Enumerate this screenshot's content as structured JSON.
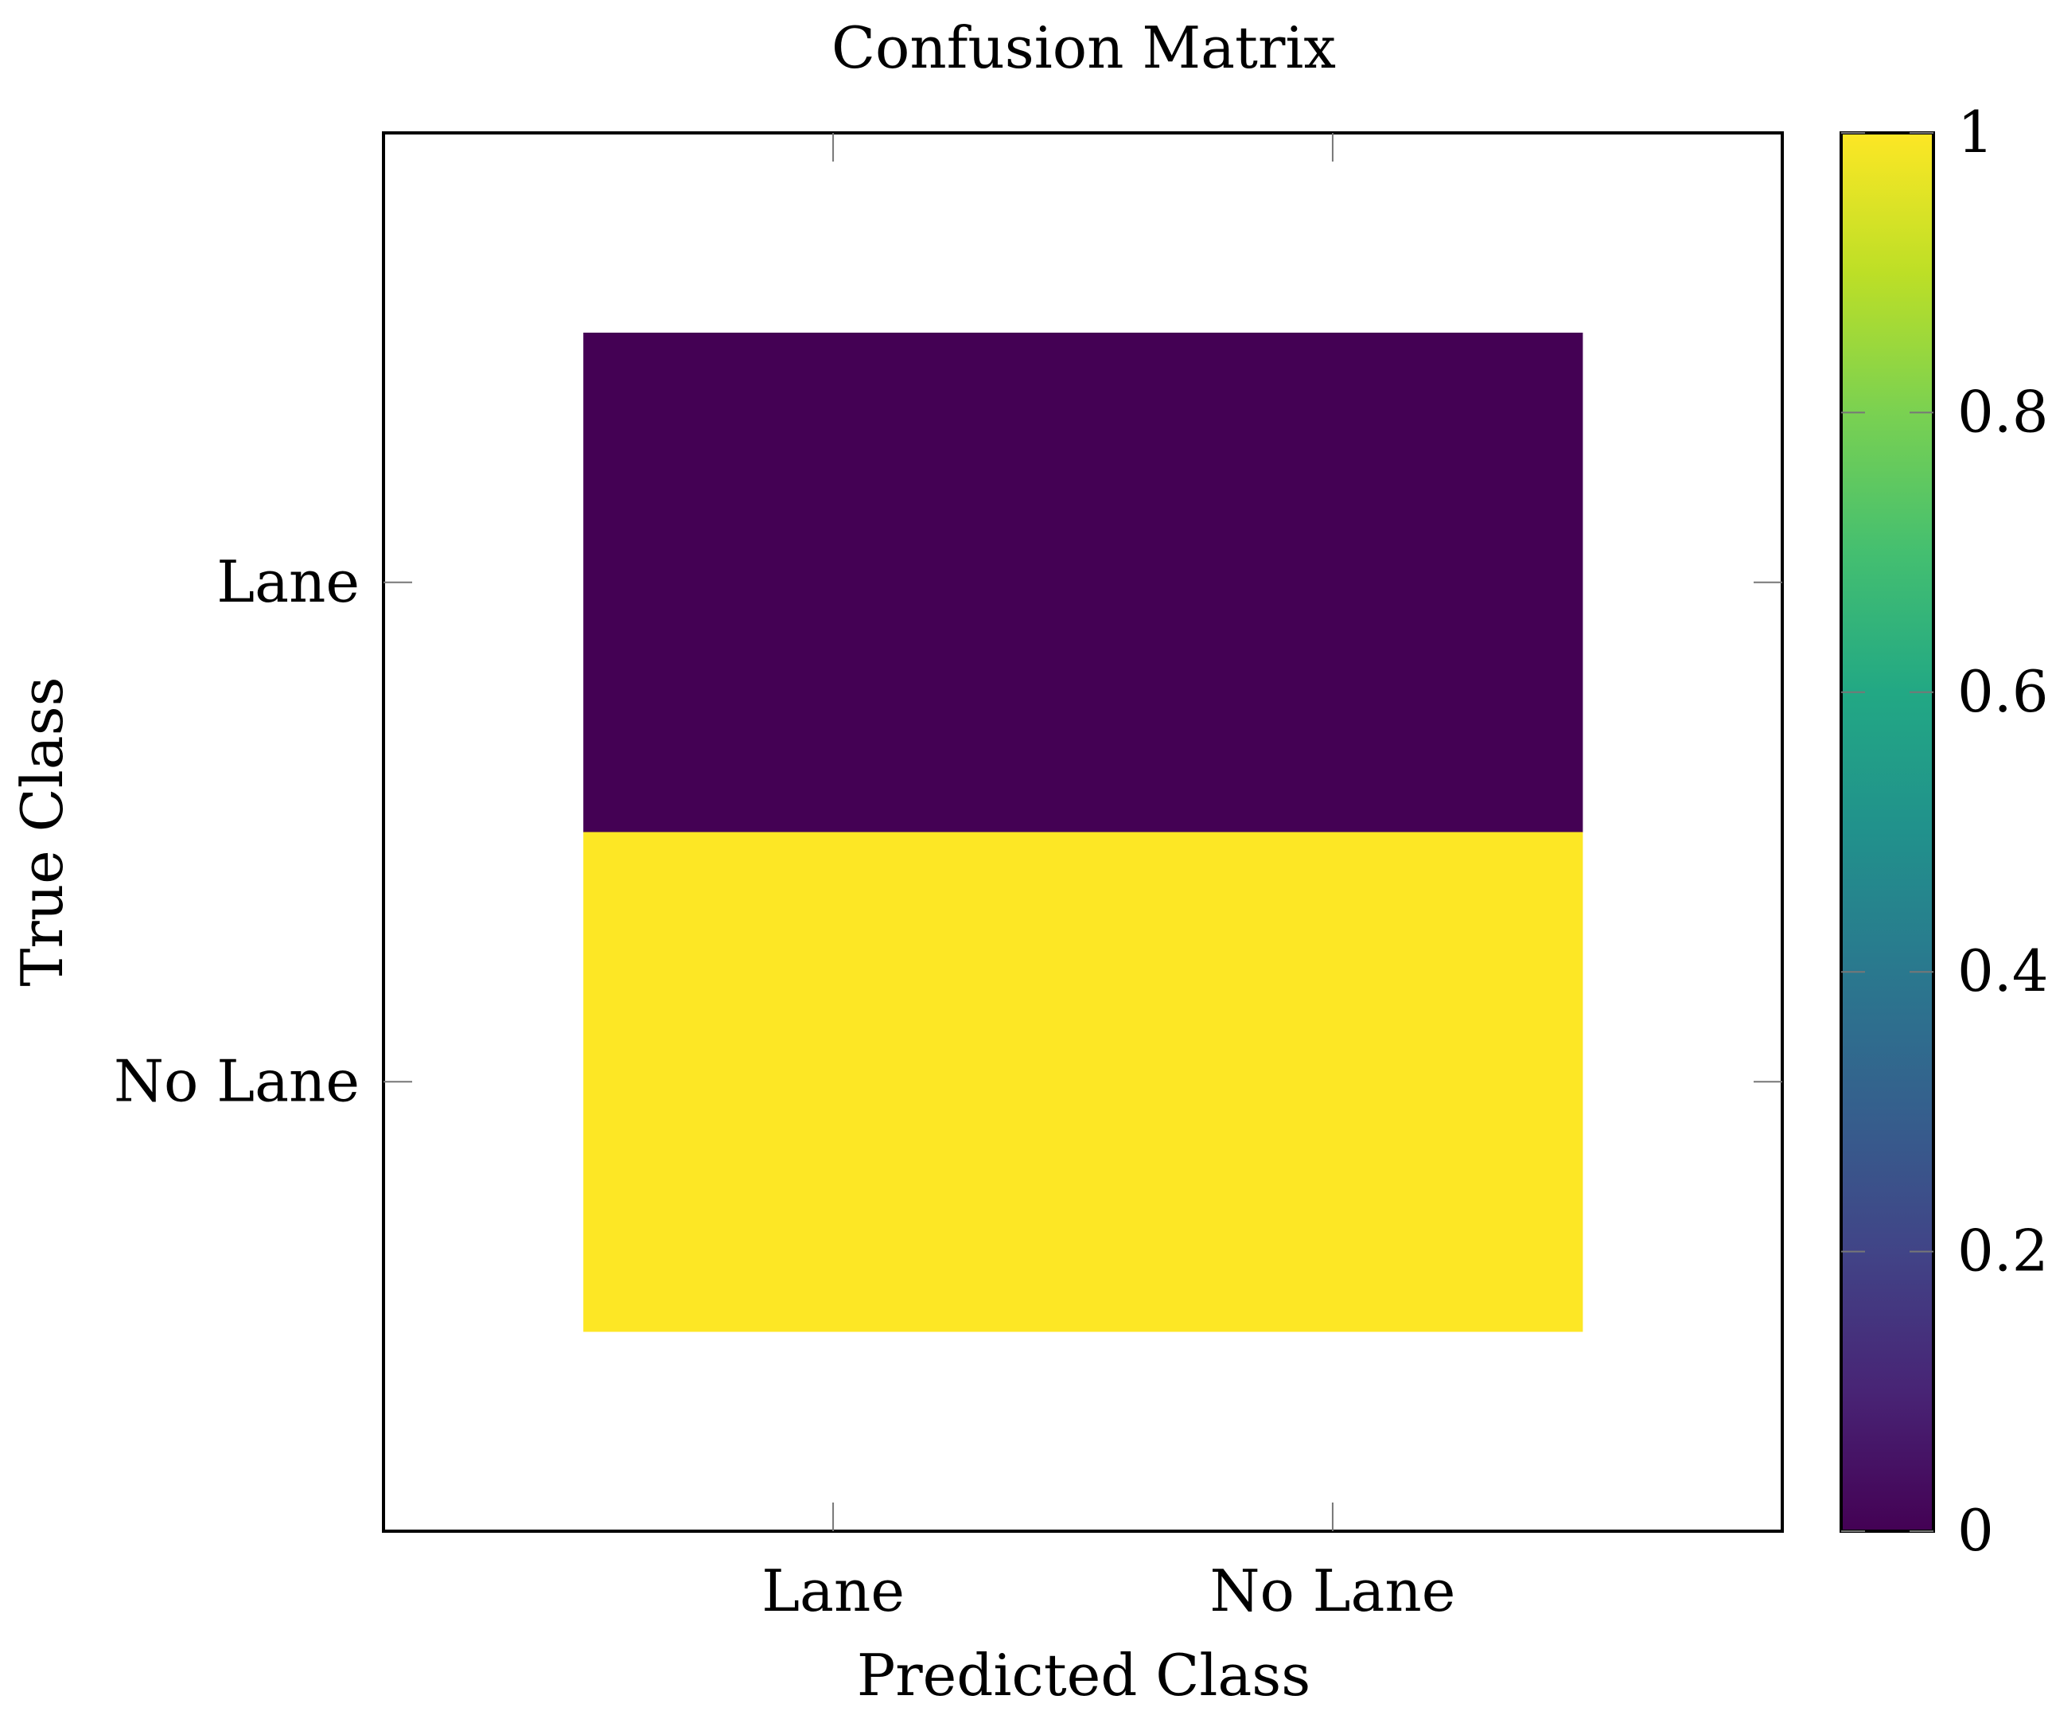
{
  "chart_data": {
    "type": "heatmap",
    "title": "Confusion Matrix",
    "xlabel": "Predicted Class",
    "ylabel": "True Class",
    "x_categories": [
      "Lane",
      "No Lane"
    ],
    "y_categories": [
      "Lane",
      "No Lane"
    ],
    "values": [
      [
        0,
        0
      ],
      [
        1,
        1
      ]
    ],
    "colormap": "viridis",
    "colorbar": {
      "range": [
        0,
        1
      ],
      "ticks": [
        0,
        0.2,
        0.4,
        0.6,
        0.8,
        1
      ],
      "tick_labels": [
        "0",
        "0.2",
        "0.4",
        "0.6",
        "0.8",
        "1"
      ]
    },
    "colors": {
      "low": "#440154",
      "high": "#fde725"
    },
    "grid": false,
    "legend": "colorbar-right"
  }
}
